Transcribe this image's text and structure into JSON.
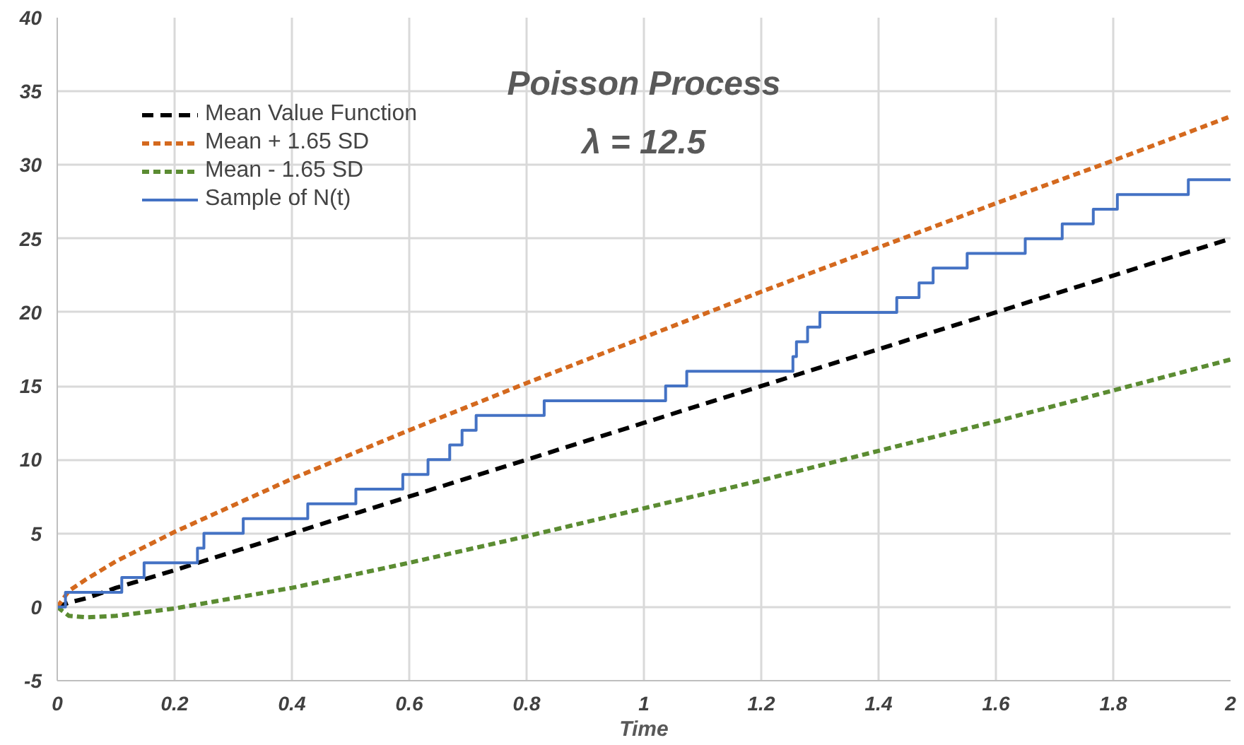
{
  "chart_data": {
    "type": "line",
    "title": "Poisson Process",
    "subtitle": "λ = 12.5",
    "xlabel": "Time",
    "x": [
      0,
      0.02,
      0.05,
      0.1,
      0.2,
      0.3,
      0.4,
      0.6,
      0.8,
      1.0,
      1.2,
      1.4,
      1.6,
      1.8,
      2.0
    ],
    "series": [
      {
        "name": "Mean Value Function",
        "color": "#000000",
        "line_style": "dashed",
        "values": [
          0,
          0.3,
          0.6,
          1.3,
          2.5,
          3.75,
          5,
          7.5,
          10,
          12.5,
          15,
          17.5,
          20,
          22.5,
          25
        ]
      },
      {
        "name": "Mean + 1.65 SD",
        "color": "#d4691e",
        "line_style": "dotted",
        "values": [
          0,
          1.1,
          1.9,
          3.1,
          5.1,
          6.9,
          8.7,
          12.0,
          15.2,
          18.3,
          21.4,
          24.4,
          27.4,
          30.3,
          33.3
        ]
      },
      {
        "name": "Mean - 1.65 SD",
        "color": "#5b8c32",
        "line_style": "dotted",
        "values": [
          0,
          -0.6,
          -0.7,
          -0.6,
          -0.1,
          0.6,
          1.3,
          3.0,
          4.8,
          6.7,
          8.6,
          10.6,
          12.6,
          14.7,
          16.8
        ]
      },
      {
        "name": "Sample of N(t)",
        "color": "#4472c4",
        "type": "step",
        "line_style": "solid",
        "x": [
          0,
          0.014,
          0.11,
          0.148,
          0.239,
          0.25,
          0.317,
          0.427,
          0.509,
          0.589,
          0.632,
          0.669,
          0.69,
          0.714,
          0.83,
          1.037,
          1.073,
          1.254,
          1.26,
          1.279,
          1.3,
          1.431,
          1.469,
          1.493,
          1.551,
          1.65,
          1.713,
          1.766,
          1.807,
          1.928,
          2.0
        ],
        "values": [
          0,
          1,
          2,
          3,
          4,
          5,
          6,
          7,
          8,
          9,
          10,
          11,
          12,
          13,
          14,
          15,
          16,
          17,
          18,
          19,
          20,
          21,
          22,
          23,
          24,
          25,
          26,
          27,
          28,
          29,
          29
        ]
      }
    ],
    "xlim": [
      0,
      2
    ],
    "ylim": [
      -5,
      40
    ],
    "xticks": [
      0,
      0.2,
      0.4,
      0.6,
      0.8,
      1,
      1.2,
      1.4,
      1.6,
      1.8,
      2
    ],
    "yticks": [
      -5,
      0,
      5,
      10,
      15,
      20,
      25,
      30,
      35,
      40
    ],
    "grid": true,
    "legend": "top left",
    "marker": "none"
  }
}
